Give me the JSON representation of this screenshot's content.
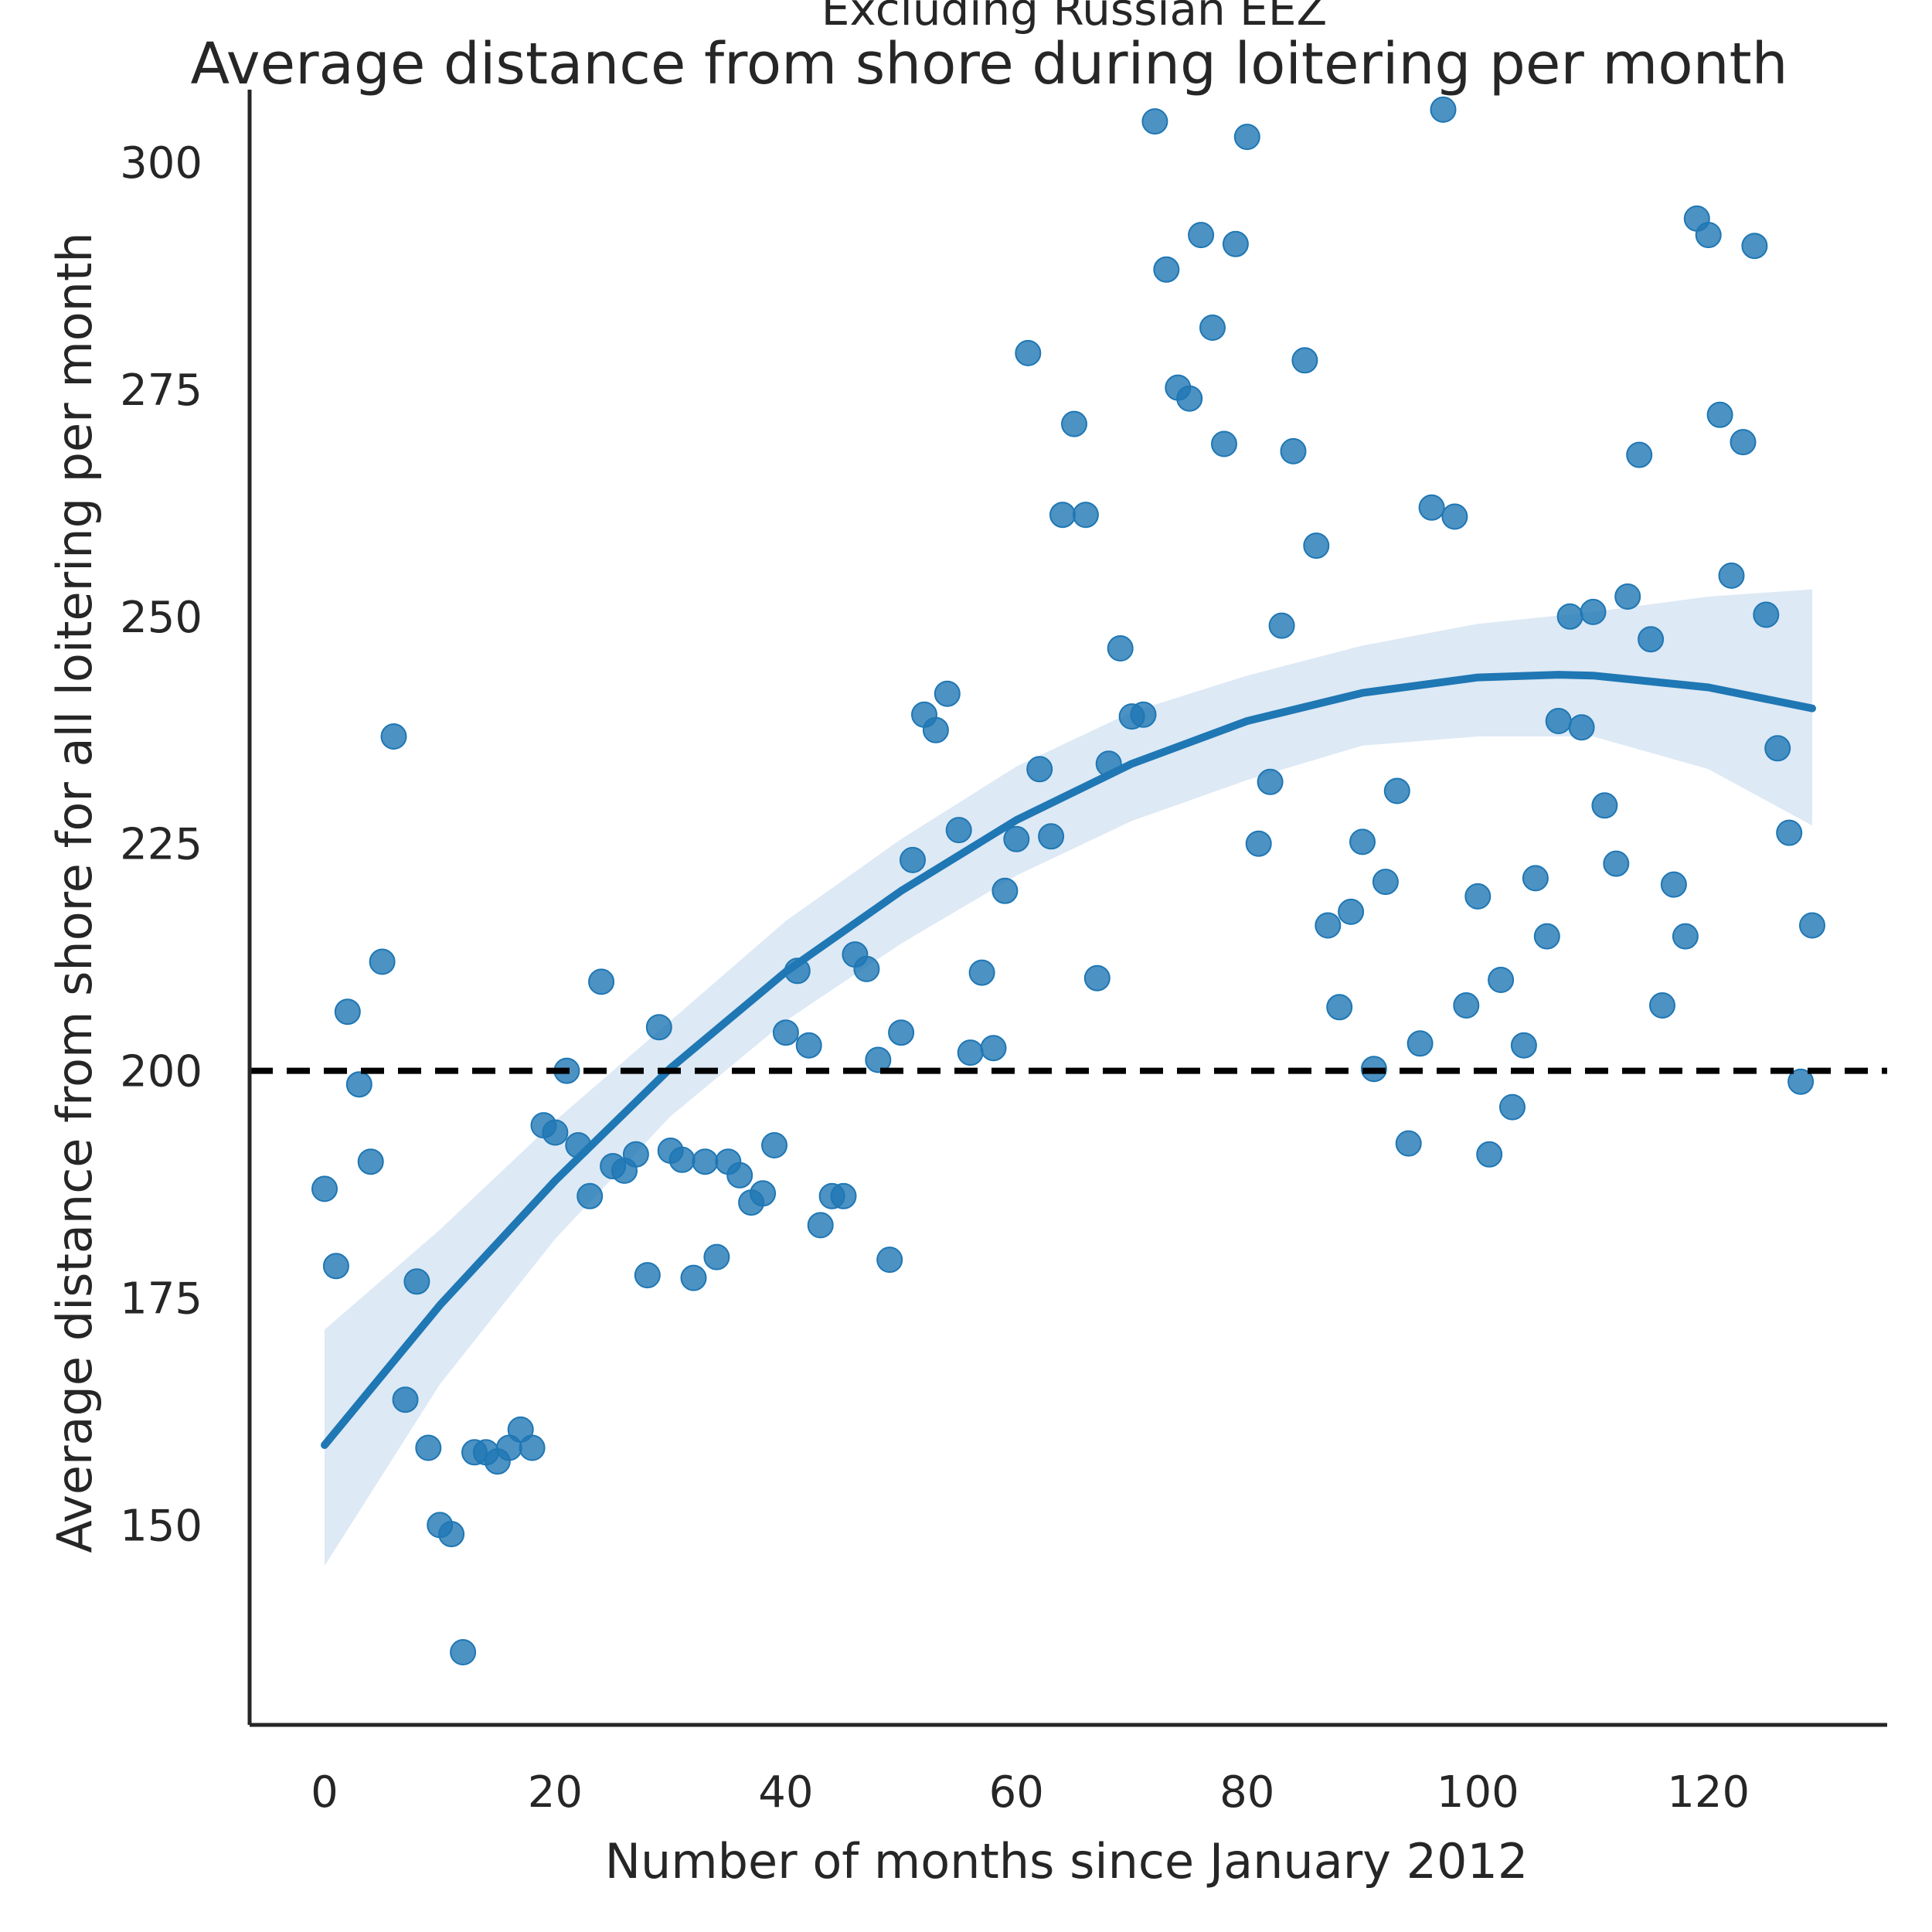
{
  "chart_data": {
    "type": "scatter",
    "title": "Average distance from shore during loitering per month",
    "subtitle": "Excluding Russian EEZ",
    "xlabel": "Number of months since January 2012",
    "ylabel": "Average distance from shore for all loitering per month",
    "xlim": [
      -6.5,
      135.5
    ],
    "ylim": [
      128,
      308
    ],
    "xticks": [
      0,
      20,
      40,
      60,
      80,
      100,
      120
    ],
    "yticks": [
      150,
      175,
      200,
      225,
      250,
      275,
      300
    ],
    "grid": false,
    "reference_line": {
      "y": 200,
      "style": "dashed",
      "color": "#000000"
    },
    "colors": {
      "points": "#1f77b4",
      "fit_line": "#1f77b4",
      "band": "#c6dbef",
      "axes": "#262626"
    },
    "points": [
      [
        0,
        187
      ],
      [
        1,
        178.5
      ],
      [
        2,
        206.5
      ],
      [
        3,
        198.5
      ],
      [
        4,
        190
      ],
      [
        5,
        212
      ],
      [
        6,
        236.8
      ],
      [
        7,
        163.8
      ],
      [
        8,
        176.8
      ],
      [
        9,
        158.5
      ],
      [
        10,
        150
      ],
      [
        11,
        149
      ],
      [
        12,
        136
      ],
      [
        13,
        158
      ],
      [
        14,
        158
      ],
      [
        15,
        157
      ],
      [
        16,
        158.5
      ],
      [
        17,
        160.5
      ],
      [
        18,
        158.5
      ],
      [
        19,
        194
      ],
      [
        20,
        193.2
      ],
      [
        21,
        200
      ],
      [
        22,
        191.8
      ],
      [
        23,
        186.2
      ],
      [
        24,
        209.8
      ],
      [
        25,
        189.5
      ],
      [
        26,
        189
      ],
      [
        27,
        190.8
      ],
      [
        28,
        177.5
      ],
      [
        29,
        204.8
      ],
      [
        30,
        191.2
      ],
      [
        31,
        190.2
      ],
      [
        32,
        177.2
      ],
      [
        33,
        190
      ],
      [
        34,
        179.5
      ],
      [
        35,
        190
      ],
      [
        36,
        188.5
      ],
      [
        37,
        185.5
      ],
      [
        38,
        186.5
      ],
      [
        39,
        191.8
      ],
      [
        40,
        204.2
      ],
      [
        41,
        211
      ],
      [
        42,
        202.8
      ],
      [
        43,
        183
      ],
      [
        44,
        186.2
      ],
      [
        45,
        186.2
      ],
      [
        46,
        212.8
      ],
      [
        47,
        211.2
      ],
      [
        48,
        201.2
      ],
      [
        49,
        179.2
      ],
      [
        50,
        204.2
      ],
      [
        51,
        223.2
      ],
      [
        52,
        239.2
      ],
      [
        53,
        237.5
      ],
      [
        54,
        241.5
      ],
      [
        55,
        226.5
      ],
      [
        56,
        202
      ],
      [
        57,
        210.8
      ],
      [
        58,
        202.5
      ],
      [
        59,
        219.8
      ],
      [
        60,
        225.5
      ],
      [
        61,
        279
      ],
      [
        62,
        233.2
      ],
      [
        63,
        225.8
      ],
      [
        64,
        261.2
      ],
      [
        65,
        271.2
      ],
      [
        66,
        261.2
      ],
      [
        67,
        210.2
      ],
      [
        68,
        233.8
      ],
      [
        69,
        246.5
      ],
      [
        70,
        239
      ],
      [
        71,
        239.2
      ],
      [
        72,
        304.5
      ],
      [
        73,
        288.2
      ],
      [
        74,
        275.2
      ],
      [
        75,
        274
      ],
      [
        76,
        292
      ],
      [
        77,
        281.8
      ],
      [
        78,
        269
      ],
      [
        79,
        291
      ],
      [
        80,
        302.8
      ],
      [
        81,
        225
      ],
      [
        82,
        231.8
      ],
      [
        83,
        249
      ],
      [
        84,
        268.2
      ],
      [
        85,
        278.2
      ],
      [
        86,
        257.8
      ],
      [
        87,
        216
      ],
      [
        88,
        207
      ],
      [
        89,
        217.5
      ],
      [
        90,
        225.2
      ],
      [
        91,
        200.2
      ],
      [
        92,
        220.8
      ],
      [
        93,
        230.8
      ],
      [
        94,
        192
      ],
      [
        95,
        203
      ],
      [
        96,
        262
      ],
      [
        97,
        305.8
      ],
      [
        98,
        261
      ],
      [
        99,
        207.2
      ],
      [
        100,
        219.2
      ],
      [
        101,
        190.8
      ],
      [
        102,
        210
      ],
      [
        103,
        196
      ],
      [
        104,
        202.8
      ],
      [
        105,
        221.2
      ],
      [
        106,
        214.8
      ],
      [
        107,
        238.5
      ],
      [
        108,
        250
      ],
      [
        109,
        237.8
      ],
      [
        110,
        250.5
      ],
      [
        111,
        229.2
      ],
      [
        112,
        222.8
      ],
      [
        113,
        252.2
      ],
      [
        114,
        267.8
      ],
      [
        115,
        247.5
      ],
      [
        116,
        207.2
      ],
      [
        117,
        220.5
      ],
      [
        118,
        214.8
      ],
      [
        119,
        293.8
      ],
      [
        120,
        292
      ],
      [
        121,
        272.2
      ],
      [
        122,
        254.5
      ],
      [
        123,
        269.2
      ],
      [
        124,
        290.8
      ],
      [
        125,
        250.2
      ],
      [
        126,
        235.5
      ],
      [
        127,
        226.2
      ],
      [
        128,
        198.8
      ],
      [
        129,
        216
      ]
    ],
    "series": [
      {
        "x": [
          0,
          10,
          20,
          30,
          40,
          50,
          60,
          70,
          80,
          90,
          100,
          107,
          110,
          120,
          129
        ],
        "y": [
          158.8,
          174.2,
          187.9,
          200.3,
          210.9,
          219.8,
          227.6,
          233.8,
          238.5,
          241.6,
          243.3,
          243.6,
          243.5,
          242.2,
          239.9
        ]
      }
    ],
    "band": {
      "x": [
        0,
        10,
        20,
        30,
        40,
        50,
        60,
        70,
        80,
        90,
        100,
        110,
        120,
        129
      ],
      "upper": [
        171.5,
        182.5,
        194.5,
        205.5,
        216.5,
        225.5,
        233.5,
        239.5,
        243.5,
        246.8,
        249.2,
        250.5,
        252.2,
        253
      ],
      "lower": [
        145.5,
        165.5,
        181.5,
        195,
        205.5,
        214,
        221.5,
        227.5,
        232,
        235.8,
        236.8,
        236.8,
        233.2,
        227
      ]
    }
  }
}
